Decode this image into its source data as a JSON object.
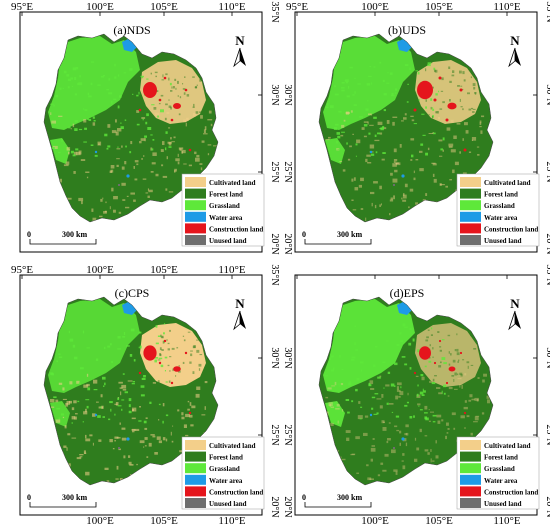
{
  "colors": {
    "cultivated": "#f3cf8a",
    "forest": "#2f7d1e",
    "grassland": "#5ee83a",
    "water": "#1e9be6",
    "construction": "#e5151c",
    "unused": "#6e6e6e",
    "frame": "#000000"
  },
  "panels": [
    {
      "id": "a",
      "title": "(a)NDS",
      "scenario_class": "NDS",
      "top_lon_labels": [
        "95°E",
        "100°E",
        "105°E",
        "110°E"
      ],
      "bottom_lon_labels": [],
      "right_lat_labels": [
        "35°N",
        "30°N",
        "25°N",
        "20°N"
      ],
      "left_lat_labels": [],
      "north_arrow_label": "N",
      "scale_bar": {
        "start": "0",
        "end": "300 km"
      },
      "legend": [
        {
          "label": "Cultivated land",
          "color_key": "cultivated"
        },
        {
          "label": "Forest land",
          "color_key": "forest"
        },
        {
          "label": "Grassland",
          "color_key": "grassland"
        },
        {
          "label": "Water area",
          "color_key": "water"
        },
        {
          "label": "Construction land",
          "color_key": "construction"
        },
        {
          "label": "Unused land",
          "color_key": "unused"
        }
      ]
    },
    {
      "id": "b",
      "title": "(b)UDS",
      "scenario_class": "UDS",
      "top_lon_labels": [
        "95°E",
        "100°E",
        "105°E",
        "110°E"
      ],
      "bottom_lon_labels": [],
      "right_lat_labels": [
        "35°N",
        "30°N",
        "25°N",
        "20°N"
      ],
      "left_lat_labels": [
        "30°N",
        "25°N",
        "20°N"
      ],
      "north_arrow_label": "N",
      "scale_bar": {
        "start": "0",
        "end": "300 km"
      },
      "legend": [
        {
          "label": "Cultivated land",
          "color_key": "cultivated"
        },
        {
          "label": "Forest land",
          "color_key": "forest"
        },
        {
          "label": "Grassland",
          "color_key": "grassland"
        },
        {
          "label": "Water area",
          "color_key": "water"
        },
        {
          "label": "Construction land",
          "color_key": "construction"
        },
        {
          "label": "Unused land",
          "color_key": "unused"
        }
      ]
    },
    {
      "id": "c",
      "title": "(c)CPS",
      "scenario_class": "CPS",
      "top_lon_labels": [
        "95°E",
        "100°E",
        "105°E",
        "110°E"
      ],
      "bottom_lon_labels": [
        "100°E",
        "105°E",
        "110°E"
      ],
      "right_lat_labels": [
        "35°N",
        "30°N",
        "25°N",
        "20°N"
      ],
      "left_lat_labels": [],
      "north_arrow_label": "N",
      "scale_bar": {
        "start": "0",
        "end": "300 km"
      },
      "legend": [
        {
          "label": "Cultivated land",
          "color_key": "cultivated"
        },
        {
          "label": "Forest land",
          "color_key": "forest"
        },
        {
          "label": "Grassland",
          "color_key": "grassland"
        },
        {
          "label": "Water area",
          "color_key": "water"
        },
        {
          "label": "Construction land",
          "color_key": "construction"
        },
        {
          "label": "Unused land",
          "color_key": "unused"
        }
      ]
    },
    {
      "id": "d",
      "title": "(d)EPS",
      "scenario_class": "EPS",
      "top_lon_labels": [],
      "bottom_lon_labels": [
        "100°E",
        "105°E",
        "110°E"
      ],
      "right_lat_labels": [
        "35°N",
        "30°N",
        "25°N",
        "20°N"
      ],
      "left_lat_labels": [
        "30°N",
        "25°N",
        "20°N"
      ],
      "north_arrow_label": "N",
      "scale_bar": {
        "start": "0",
        "end": "300 km"
      },
      "legend": [
        {
          "label": "Cultivated land",
          "color_key": "cultivated"
        },
        {
          "label": "Forest land",
          "color_key": "forest"
        },
        {
          "label": "Grassland",
          "color_key": "grassland"
        },
        {
          "label": "Water area",
          "color_key": "water"
        },
        {
          "label": "Construction land",
          "color_key": "construction"
        },
        {
          "label": "Unused land",
          "color_key": "unused"
        }
      ]
    }
  ]
}
